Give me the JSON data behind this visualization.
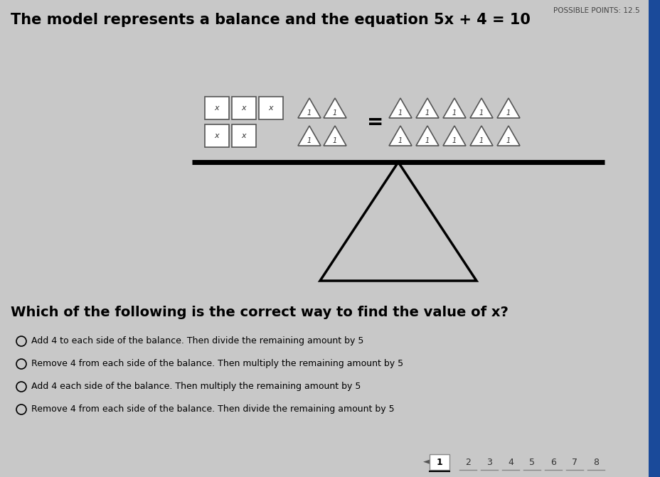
{
  "title": "The model represents a balance and the equation 5x + 4 = 10",
  "title_fontsize": 15,
  "title_fontweight": "bold",
  "possible_points": "POSSIBLE POINTS: 12.5",
  "background_color": "#c8c8c8",
  "question": "Which of the following is the correct way to find the value of x?",
  "question_fontsize": 14,
  "question_fontweight": "bold",
  "options": [
    "Add 4 to each side of the balance. Then divide the remaining amount by 5",
    "Remove 4 from each side of the balance. Then multiply the remaining amount by 5",
    "Add 4 each side of the balance. Then multiply the remaining amount by 5",
    "Remove 4 from each side of the balance. Then divide the remaining amount by 5"
  ],
  "options_fontsize": 9,
  "nav_numbers": [
    "1",
    "2",
    "3",
    "4",
    "5",
    "6",
    "7",
    "8"
  ]
}
